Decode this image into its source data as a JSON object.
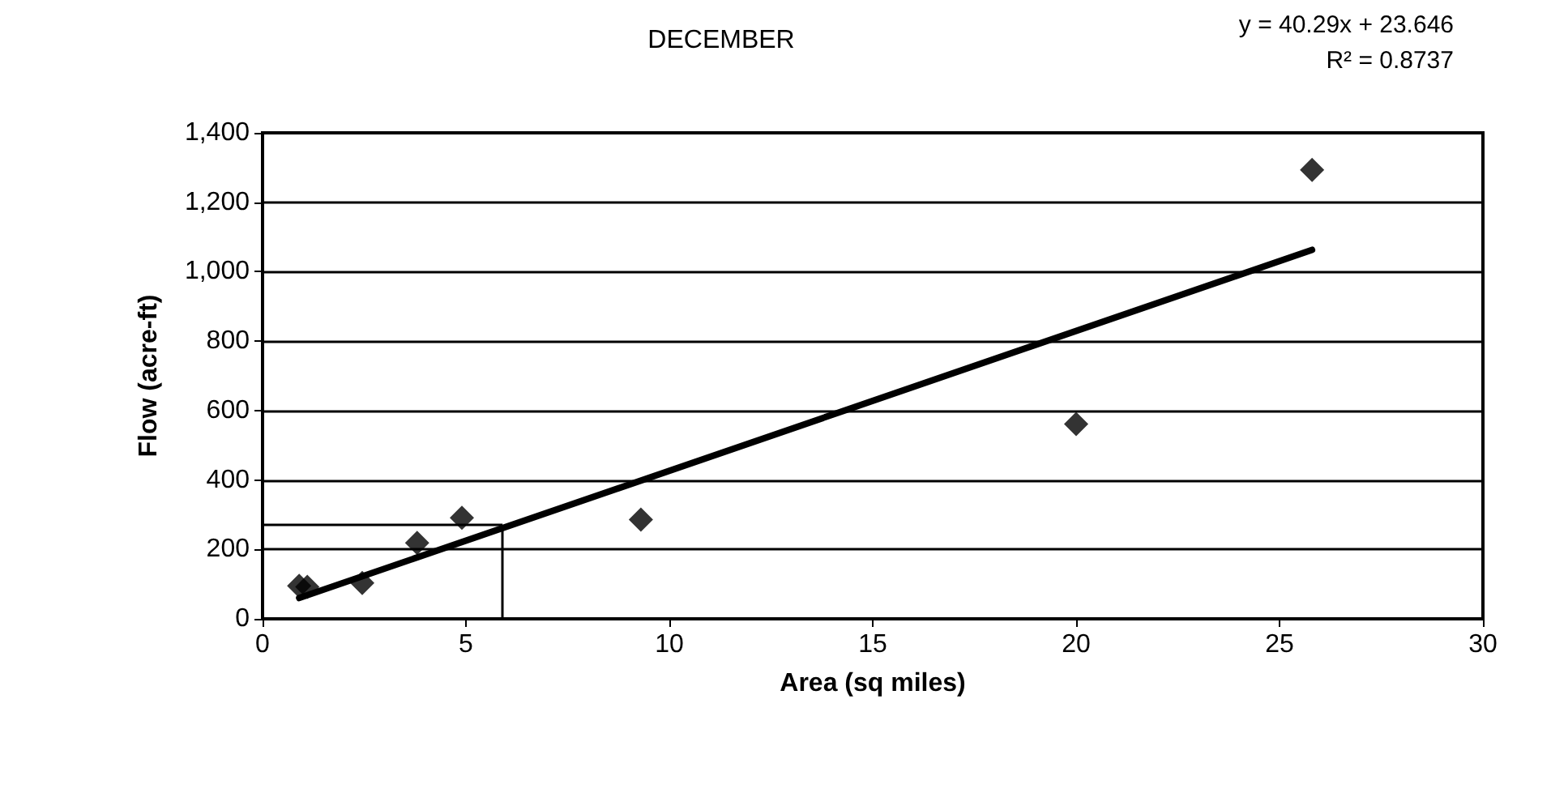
{
  "chart_data": {
    "type": "scatter",
    "title": "DECEMBER",
    "xlabel": "Area (sq miles)",
    "ylabel": "Flow (acre-ft)",
    "annotations": [
      "y = 40.29x + 23.646",
      "R² = 0.8737"
    ],
    "series": [
      {
        "color": "#000000",
        "x": [
          0.9,
          1.1,
          2.45,
          3.8,
          4.9,
          9.3,
          20.0,
          25.8
        ],
        "values": [
          95,
          92,
          103,
          219,
          291,
          286,
          561,
          1293
        ]
      },
      {
        "type": "line",
        "color": "#000000",
        "marker": "none",
        "x": [
          0.9,
          25.8
        ],
        "values": [
          60,
          1063
        ]
      }
    ],
    "xlim": [
      0,
      30
    ],
    "xticks": [
      0,
      5,
      10,
      15,
      20,
      25,
      30
    ],
    "ylim": [
      0,
      1400
    ],
    "yticks": [
      0,
      200,
      400,
      600,
      800,
      {
        "value": 1000,
        "label": "1,000"
      },
      {
        "value": 1200,
        "label": "1,200"
      },
      {
        "value": 1400,
        "label": "1,400"
      }
    ],
    "ref_lines": [
      {
        "axis": "y",
        "value": 270
      },
      {
        "axis": "x",
        "value": 5.9
      }
    ],
    "grid": "y",
    "marker": "diamond"
  }
}
